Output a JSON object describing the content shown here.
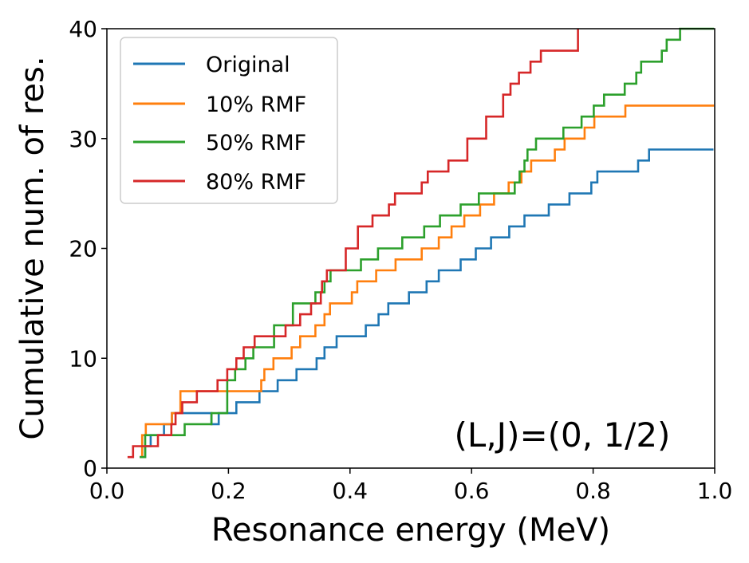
{
  "chart_data": {
    "type": "line",
    "step": true,
    "xlabel": "Resonance energy (MeV)",
    "ylabel": "Cumulative num. of res.",
    "xlim": [
      0.0,
      1.0
    ],
    "ylim": [
      0,
      40
    ],
    "x_ticks": [
      0.0,
      0.2,
      0.4,
      0.6,
      0.8,
      1.0
    ],
    "x_tick_labels": [
      "0.0",
      "0.2",
      "0.4",
      "0.6",
      "0.8",
      "1.0"
    ],
    "y_ticks": [
      0,
      10,
      20,
      30,
      40
    ],
    "y_tick_labels": [
      "0",
      "10",
      "20",
      "30",
      "40"
    ],
    "grid": false,
    "legend_position": "top-left",
    "annotation": "(L,J)=(0, 1/2)",
    "series": [
      {
        "name": "Original",
        "color": "#1f77b4",
        "x": [
          0.054,
          0.063,
          0.072,
          0.094,
          0.107,
          0.172,
          0.184,
          0.213,
          0.251,
          0.281,
          0.312,
          0.345,
          0.358,
          0.378,
          0.384,
          0.426,
          0.431,
          0.447,
          0.463,
          0.478,
          0.497,
          0.526,
          0.546,
          0.567,
          0.582,
          0.607,
          0.632,
          0.662,
          0.687,
          0.727,
          0.761,
          0.791,
          0.797,
          0.807,
          0.874,
          0.882,
          0.892,
          0.896,
          0.906,
          0.933,
          0.998
        ],
        "y": [
          1,
          2,
          3,
          4,
          5,
          4,
          5,
          6,
          7,
          8,
          9,
          10,
          11,
          12,
          12,
          13,
          13,
          14,
          15,
          15,
          16,
          17,
          18,
          18,
          19,
          20,
          21,
          22,
          23,
          24,
          25,
          25,
          26,
          27,
          28,
          28,
          29,
          29,
          29,
          29,
          29
        ]
      },
      {
        "name": "10% RMF",
        "color": "#ff7f0e",
        "x": [
          0.054,
          0.058,
          0.064,
          0.088,
          0.107,
          0.121,
          0.198,
          0.203,
          0.211,
          0.254,
          0.259,
          0.274,
          0.304,
          0.318,
          0.343,
          0.358,
          0.367,
          0.378,
          0.403,
          0.412,
          0.443,
          0.475,
          0.518,
          0.546,
          0.567,
          0.588,
          0.614,
          0.637,
          0.661,
          0.682,
          0.698,
          0.721,
          0.737,
          0.753,
          0.786,
          0.802,
          0.853,
          0.873,
          0.896,
          0.911,
          0.926,
          0.991,
          0.999
        ],
        "y": [
          1,
          3,
          4,
          4,
          5,
          7,
          7,
          7,
          7,
          8,
          9,
          10,
          11,
          12,
          13,
          14,
          15,
          15,
          16,
          17,
          18,
          19,
          20,
          21,
          22,
          23,
          24,
          25,
          26,
          27,
          28,
          28,
          29,
          30,
          31,
          32,
          33,
          33,
          33,
          33,
          33,
          33,
          33
        ]
      },
      {
        "name": "50% RMF",
        "color": "#2ca02c",
        "x": [
          0.054,
          0.063,
          0.073,
          0.128,
          0.172,
          0.198,
          0.211,
          0.228,
          0.241,
          0.275,
          0.306,
          0.343,
          0.358,
          0.368,
          0.418,
          0.446,
          0.486,
          0.522,
          0.548,
          0.582,
          0.612,
          0.671,
          0.679,
          0.687,
          0.692,
          0.706,
          0.751,
          0.781,
          0.801,
          0.818,
          0.852,
          0.871,
          0.879,
          0.913,
          0.921,
          0.943,
          0.961,
          0.991,
          0.999
        ],
        "y": [
          1,
          3,
          3,
          4,
          5,
          8,
          9,
          10,
          11,
          13,
          15,
          16,
          17,
          18,
          19,
          20,
          21,
          22,
          23,
          24,
          25,
          26,
          27,
          28,
          29,
          30,
          31,
          32,
          33,
          34,
          35,
          36,
          37,
          38,
          39,
          40,
          40,
          40,
          40
        ]
      },
      {
        "name": "80% RMF",
        "color": "#d62728",
        "x": [
          0.034,
          0.043,
          0.084,
          0.106,
          0.113,
          0.124,
          0.148,
          0.182,
          0.198,
          0.213,
          0.225,
          0.243,
          0.294,
          0.318,
          0.336,
          0.352,
          0.354,
          0.362,
          0.393,
          0.413,
          0.437,
          0.464,
          0.474,
          0.518,
          0.528,
          0.562,
          0.593,
          0.624,
          0.652,
          0.664,
          0.678,
          0.697,
          0.714,
          0.775
        ],
        "y": [
          1,
          2,
          3,
          4,
          5,
          6,
          7,
          8,
          9,
          10,
          11,
          12,
          13,
          14,
          15,
          16,
          17,
          18,
          20,
          22,
          23,
          24,
          25,
          26,
          27,
          28,
          30,
          32,
          34,
          35,
          36,
          37,
          38,
          40
        ]
      }
    ]
  }
}
